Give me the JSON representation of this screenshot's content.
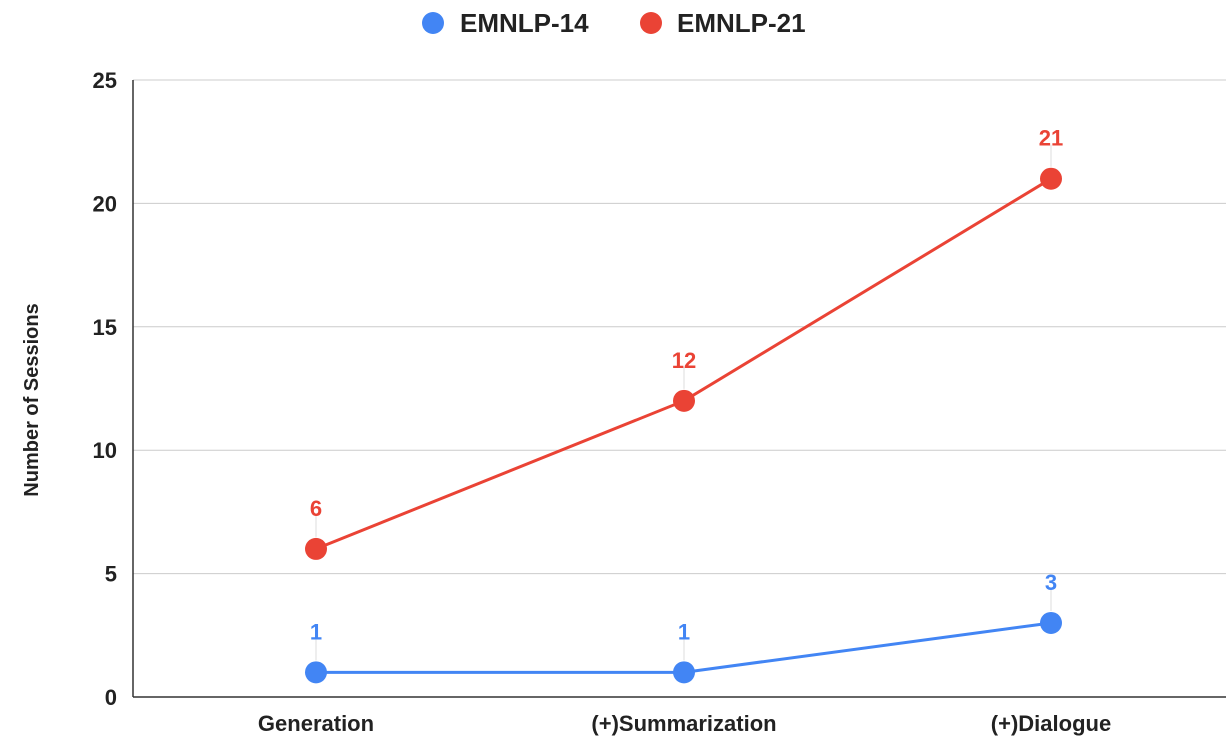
{
  "chart_data": {
    "type": "line",
    "title": "",
    "xlabel": "",
    "ylabel": "Number of Sessions",
    "categories": [
      "Generation",
      "(+)Summarization",
      "(+)Dialogue"
    ],
    "ylim": [
      0,
      25
    ],
    "yticks": [
      "0",
      "5",
      "10",
      "15",
      "20",
      "25"
    ],
    "grid": true,
    "legend_position": "top",
    "series": [
      {
        "name": "EMNLP-14",
        "color": "#4285F4",
        "values": [
          1,
          1,
          3
        ],
        "labels": [
          "1",
          "1",
          "3"
        ]
      },
      {
        "name": "EMNLP-21",
        "color": "#EA4335",
        "values": [
          6,
          12,
          21
        ],
        "labels": [
          "6",
          "12",
          "21"
        ]
      }
    ]
  }
}
